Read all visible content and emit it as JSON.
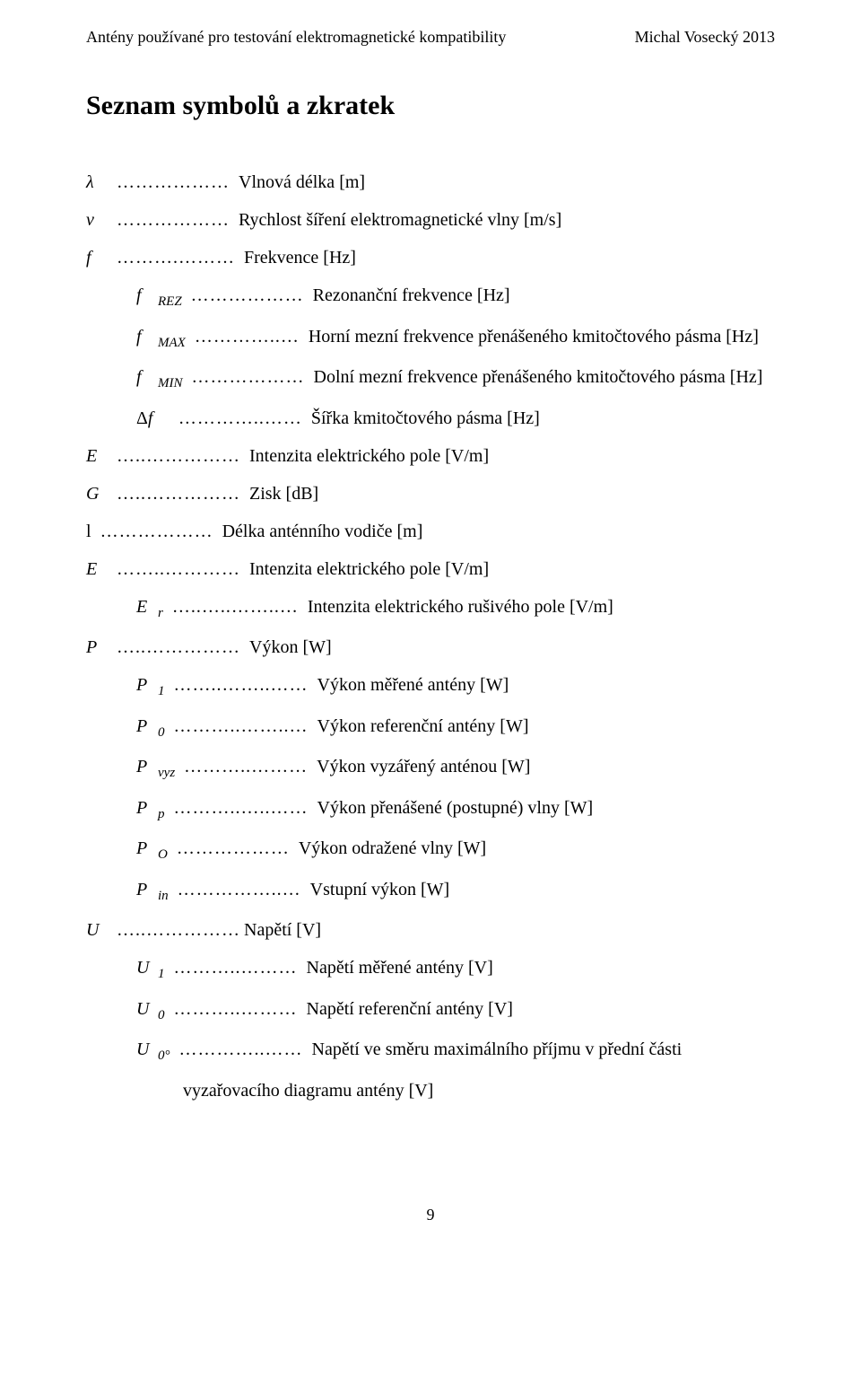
{
  "header": {
    "left": "Antény používané pro testování elektromagnetické kompatibility",
    "right": "Michal Vosecký   2013"
  },
  "title": "Seznam symbolů a zkratek",
  "lines": [
    {
      "indent": 0,
      "symbol_html": "<span class='sym'>λ</span>",
      "dots": " ……………… ",
      "desc": "Vlnová délka [m]"
    },
    {
      "indent": 0,
      "symbol_html": "<span class='sym'>v</span>",
      "dots": " ……………… ",
      "desc": "Rychlost šíření elektromagnetické vlny [m/s]"
    },
    {
      "indent": 0,
      "symbol_html": "<span class='sym'>f</span>",
      "dots": " ……….……… ",
      "desc": "Frekvence [Hz]"
    },
    {
      "indent": 1,
      "symbol_html": "<span class='sym'>f</span><span class='sub'>REZ</span>",
      "dots": " ……………… ",
      "desc": "Rezonanční frekvence [Hz]"
    },
    {
      "indent": 1,
      "symbol_html": "<span class='sym'>f</span><span class='sub'>MAX</span>",
      "dots": " …………..… ",
      "desc": "Horní mezní frekvence přenášeného kmitočtového pásma [Hz]"
    },
    {
      "indent": 1,
      "symbol_html": "<span class='sym'>f</span><span class='sub'>MIN</span>",
      "dots": " ……………… ",
      "desc": "Dolní mezní frekvence přenášeného kmitočtového pásma [Hz]"
    },
    {
      "indent": 1,
      "symbol_html": "<span class='roman'>Δ</span><span class='sym'>f</span>",
      "dots": " …………..…… ",
      "desc": "Šířka kmitočtového pásma [Hz]"
    },
    {
      "indent": 0,
      "symbol_html": "<span class='sym'>E</span>",
      "dots": " …..…………… ",
      "desc": "Intenzita elektrického pole [V/m]"
    },
    {
      "indent": 0,
      "symbol_html": "<span class='sym'>G</span>",
      "dots": " …..…………… ",
      "desc": "Zisk [dB]"
    },
    {
      "indent": 0,
      "symbol_html": "<span class='roman'>l</span>",
      "dots": " ……………… ",
      "desc": "Délka anténního vodiče [m]"
    },
    {
      "indent": 0,
      "symbol_html": "<span class='sym'>E</span>",
      "dots": " ……..………… ",
      "desc": "Intenzita elektrického pole [V/m]"
    },
    {
      "indent": 1,
      "symbol_html": "<span class='sym'>E</span><span class='sub'>r</span>",
      "dots": " …..…..……..… ",
      "desc": "Intenzita elektrického rušivého pole [V/m]"
    },
    {
      "indent": 0,
      "symbol_html": "<span class='sym'>P</span>",
      "dots": " …..…………… ",
      "desc": "Výkon [W]"
    },
    {
      "indent": 1,
      "symbol_html": "<span class='sym'>P</span><span class='sub'>1</span>",
      "dots": " ……..……..…… ",
      "desc": "Výkon měřené antény [W]"
    },
    {
      "indent": 1,
      "symbol_html": "<span class='sym'>P</span><span class='sub'>0</span>",
      "dots": " ………..……..… ",
      "desc": "Výkon referenční antény [W]"
    },
    {
      "indent": 1,
      "symbol_html": "<span class='sym'>P</span><span class='sub'>vyz</span>",
      "dots": " ………..……… ",
      "desc": "Výkon vyzářený anténou [W]"
    },
    {
      "indent": 1,
      "symbol_html": "<span class='sym'>P</span><span class='sub'>p</span>",
      "dots": " ………..…..…… ",
      "desc": "Výkon přenášené (postupné) vlny [W]"
    },
    {
      "indent": 1,
      "symbol_html": "<span class='sym'>P</span><span class='sub'>O</span>",
      "dots": " ……………… ",
      "desc": "Výkon odražené vlny [W]"
    },
    {
      "indent": 1,
      "symbol_html": "<span class='sym'>P</span><span class='sub'>in</span>",
      "dots": " ……………..… ",
      "desc": "Vstupní výkon [W]"
    },
    {
      "indent": 0,
      "symbol_html": "<span class='sym'>U</span>",
      "dots": " …..……………",
      "desc": "Napětí [V]"
    },
    {
      "indent": 1,
      "symbol_html": "<span class='sym'>U</span><span class='sub'>1</span>",
      "dots": " ………..……… ",
      "desc": "Napětí měřené antény [V]"
    },
    {
      "indent": 1,
      "symbol_html": "<span class='sym'>U</span><span class='sub'>0</span>",
      "dots": " ………..……… ",
      "desc": "Napětí referenční antény [V]"
    },
    {
      "indent": 1,
      "symbol_html": "<span class='sym'>U</span><span class='sub'>0°</span>",
      "dots": " …………..…… ",
      "desc": "Napětí ve směru maximálního příjmu v přední části"
    },
    {
      "indent": 2,
      "symbol_html": "",
      "dots": "",
      "desc": "vyzařovacího diagramu antény [V]"
    }
  ],
  "page_number": "9"
}
